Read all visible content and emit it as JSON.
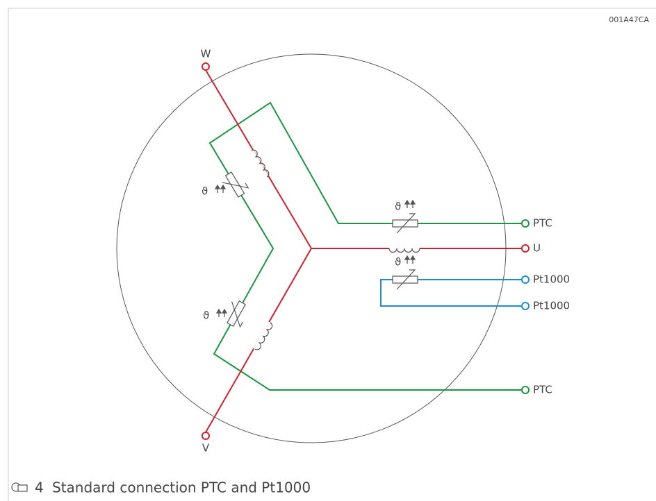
{
  "header": {
    "code": "001A47CA"
  },
  "terminals": {
    "w": "W",
    "v": "V",
    "u": "U",
    "ptc_top": "PTC",
    "pt1000_a": "Pt1000",
    "pt1000_b": "Pt1000",
    "ptc_bottom": "PTC"
  },
  "thermistor_symbols": [
    "ϑ",
    "ϑ",
    "ϑ",
    "ϑ"
  ],
  "figure": {
    "number": "4",
    "caption": "Standard connection PTC and Pt1000"
  }
}
